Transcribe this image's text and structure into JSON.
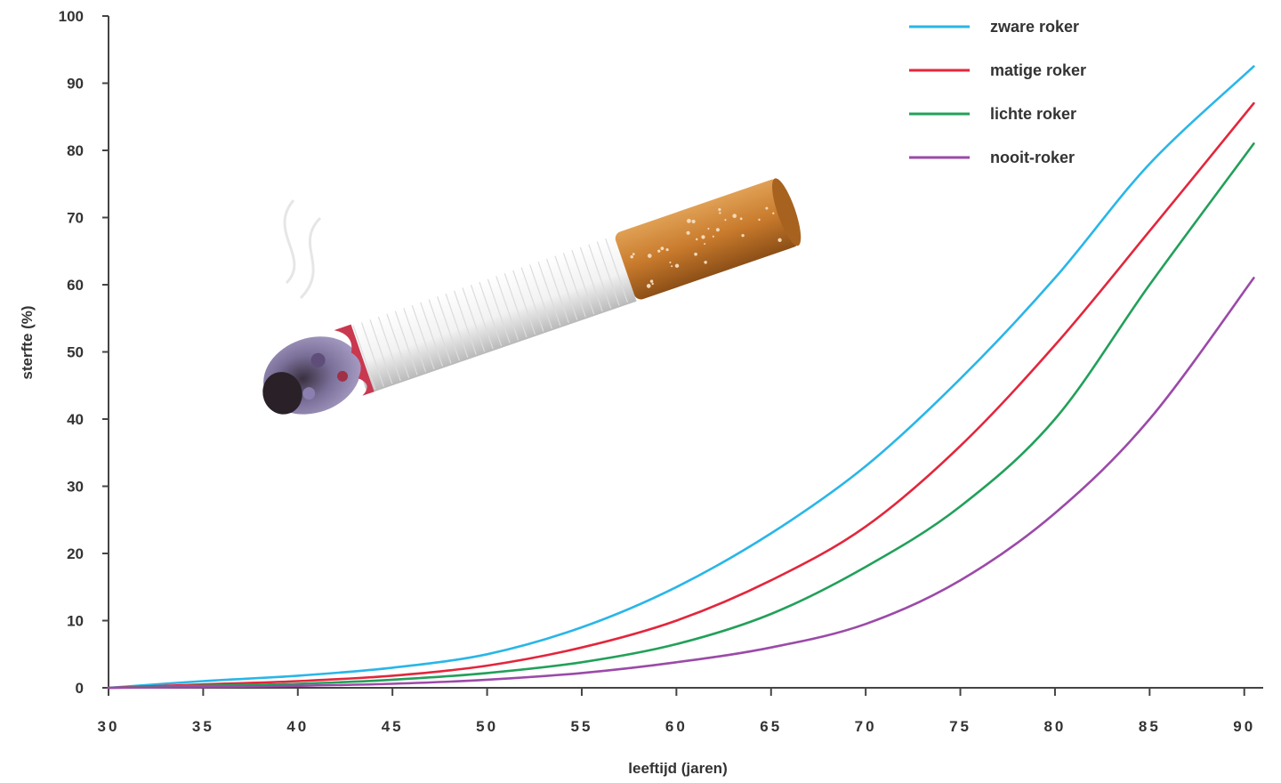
{
  "chart_data": {
    "type": "line",
    "title": "",
    "xlabel": "leeftijd (jaren)",
    "ylabel": "sterfte (%)",
    "xlim": [
      30,
      91
    ],
    "ylim": [
      0,
      100
    ],
    "x_ticks": [
      "30",
      "35",
      "40",
      "45",
      "50",
      "55",
      "60",
      "65",
      "70",
      "75",
      "80",
      "85",
      "90"
    ],
    "y_ticks": [
      "0",
      "10",
      "20",
      "30",
      "40",
      "50",
      "60",
      "70",
      "80",
      "90",
      "100"
    ],
    "grid": false,
    "legend_position": "top-right",
    "x": [
      30,
      35,
      40,
      45,
      50,
      55,
      60,
      65,
      70,
      75,
      80,
      85,
      90.5
    ],
    "series": [
      {
        "name": "zware roker",
        "color": "#29b6e8",
        "values": [
          0,
          1,
          1.8,
          3,
          5,
          9,
          15,
          23,
          33,
          46,
          61,
          78,
          92.5
        ]
      },
      {
        "name": "matige roker",
        "color": "#e3263c",
        "values": [
          0,
          0.5,
          1,
          1.8,
          3.3,
          6,
          10,
          16,
          24,
          36,
          51,
          68,
          87
        ]
      },
      {
        "name": "lichte roker",
        "color": "#22a05a",
        "values": [
          0,
          0.3,
          0.6,
          1.2,
          2.2,
          3.8,
          6.5,
          11,
          18,
          27,
          40,
          60,
          81
        ]
      },
      {
        "name": "nooit-roker",
        "color": "#9b4aa8",
        "values": [
          0,
          0.1,
          0.3,
          0.6,
          1.2,
          2.2,
          3.8,
          6,
          9.5,
          16,
          26,
          40,
          61
        ]
      }
    ]
  },
  "illustration": {
    "icon": "cigarette-icon"
  }
}
